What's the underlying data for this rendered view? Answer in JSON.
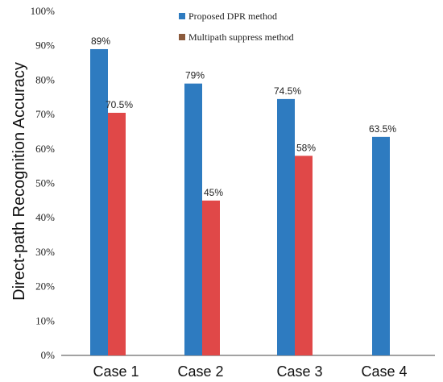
{
  "chart_data": {
    "type": "bar",
    "categories": [
      "Case 1",
      "Case 2",
      "Case 3",
      "Case 4"
    ],
    "series": [
      {
        "name": "Proposed DPR method",
        "color": "#2e7bc0",
        "values": [
          89,
          79,
          74.5,
          63.5
        ],
        "labels": [
          "89%",
          "79%",
          "74.5%",
          "63.5%"
        ]
      },
      {
        "name": "Multipath suppress method",
        "color": "#e04848",
        "legend_color": "#8b5a3c",
        "values": [
          70.5,
          45,
          58,
          null
        ],
        "labels": [
          "70.5%",
          "45%",
          "58%",
          ""
        ]
      }
    ],
    "ylabel": "Direct-path Recognition Accuracy",
    "ylim": [
      0,
      100
    ],
    "yticks": [
      0,
      10,
      20,
      30,
      40,
      50,
      60,
      70,
      80,
      90,
      100
    ],
    "ytick_labels": [
      "0%",
      "10%",
      "20%",
      "30%",
      "40%",
      "50%",
      "60%",
      "70%",
      "80%",
      "90%",
      "100%"
    ],
    "grid": false,
    "legend_position": "top-center"
  }
}
